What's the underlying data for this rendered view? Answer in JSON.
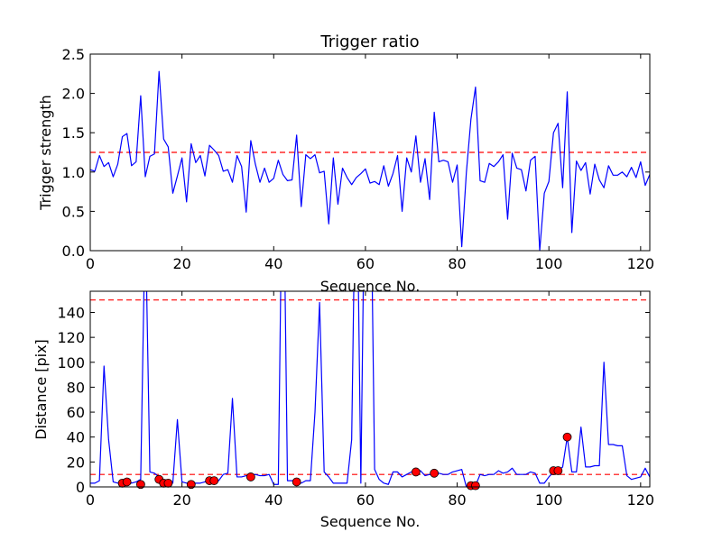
{
  "chart_data": [
    {
      "type": "line",
      "title": "Trigger ratio",
      "xlabel": "Sequence No.",
      "ylabel": "Trigger strength",
      "xlim": [
        0,
        122
      ],
      "ylim": [
        0,
        2.5
      ],
      "xticks": [
        0,
        20,
        40,
        60,
        80,
        100,
        120
      ],
      "yticks": [
        0.0,
        0.5,
        1.0,
        1.5,
        2.0,
        2.5
      ],
      "ytick_labels": [
        "0.0",
        "0.5",
        "1.0",
        "1.5",
        "2.0",
        "2.5"
      ],
      "grid": false,
      "colors": {
        "series": "#0000ff",
        "threshold": "#ff0000"
      },
      "threshold": 1.25,
      "series": [
        {
          "x": [
            0,
            1,
            2,
            3,
            4,
            5,
            6,
            7,
            8,
            9,
            10,
            11,
            12,
            13,
            14,
            15,
            16,
            17,
            18,
            19,
            20,
            21,
            22,
            23,
            24,
            25,
            26,
            27,
            28,
            29,
            30,
            31,
            32,
            33,
            34,
            35,
            36,
            37,
            38,
            39,
            40,
            41,
            42,
            43,
            44,
            45,
            46,
            47,
            48,
            49,
            50,
            51,
            52,
            53,
            54,
            55,
            56,
            57,
            58,
            59,
            60,
            61,
            62,
            63,
            64,
            65,
            66,
            67,
            68,
            69,
            70,
            71,
            72,
            73,
            74,
            75,
            76,
            77,
            78,
            79,
            80,
            81,
            82,
            83,
            84,
            85,
            86,
            87,
            88,
            89,
            90,
            91,
            92,
            93,
            94,
            95,
            96,
            97,
            98,
            99,
            100,
            101,
            102,
            103,
            104,
            105,
            106,
            107,
            108,
            109,
            110,
            111,
            112,
            113,
            114,
            115,
            116,
            117,
            118,
            119,
            120,
            121,
            122
          ],
          "values": [
            1.03,
            1.01,
            1.21,
            1.07,
            1.12,
            0.94,
            1.1,
            1.45,
            1.49,
            1.08,
            1.13,
            1.97,
            0.94,
            1.2,
            1.23,
            2.28,
            1.42,
            1.32,
            0.73,
            0.95,
            1.18,
            0.62,
            1.36,
            1.12,
            1.21,
            0.95,
            1.34,
            1.28,
            1.21,
            1.01,
            1.03,
            0.87,
            1.21,
            1.07,
            0.49,
            1.4,
            1.1,
            0.87,
            1.05,
            0.87,
            0.92,
            1.15,
            0.97,
            0.89,
            0.9,
            1.47,
            0.56,
            1.22,
            1.17,
            1.22,
            0.99,
            1.01,
            0.34,
            1.18,
            0.59,
            1.05,
            0.93,
            0.84,
            0.93,
            0.98,
            1.04,
            0.86,
            0.88,
            0.84,
            1.08,
            0.82,
            0.98,
            1.21,
            0.5,
            1.18,
            1.0,
            1.46,
            0.87,
            1.17,
            0.65,
            1.76,
            1.13,
            1.15,
            1.13,
            0.87,
            1.09,
            0.05,
            0.99,
            1.67,
            2.08,
            0.89,
            0.87,
            1.11,
            1.07,
            1.13,
            1.22,
            0.4,
            1.24,
            1.05,
            1.03,
            0.76,
            1.15,
            1.2,
            0.0,
            0.73,
            0.88,
            1.5,
            1.62,
            0.8,
            2.02,
            0.23,
            1.14,
            1.02,
            1.12,
            0.72,
            1.1,
            0.9,
            0.8,
            1.08,
            0.96,
            0.96,
            1.0,
            0.94,
            1.06,
            0.93,
            1.13,
            0.83,
            0.97
          ]
        }
      ]
    },
    {
      "type": "line",
      "title": "",
      "xlabel": "Sequence No.",
      "ylabel": "Distance [pix]",
      "xlim": [
        0,
        122
      ],
      "ylim": [
        0,
        157
      ],
      "xticks": [
        0,
        20,
        40,
        60,
        80,
        100,
        120
      ],
      "yticks": [
        0,
        20,
        40,
        60,
        80,
        100,
        120,
        140
      ],
      "ytick_labels": [
        "0",
        "20",
        "40",
        "60",
        "80",
        "100",
        "120",
        "140"
      ],
      "grid": false,
      "colors": {
        "series": "#0000ff",
        "threshold": "#ff0000",
        "markers": "#ff0000"
      },
      "thresholds": [
        150,
        10
      ],
      "series": [
        {
          "x": [
            0,
            1,
            2,
            3,
            4,
            5,
            6,
            7,
            8,
            9,
            10,
            11,
            12,
            13,
            14,
            15,
            16,
            17,
            18,
            19,
            20,
            21,
            22,
            23,
            24,
            25,
            26,
            27,
            28,
            29,
            30,
            31,
            32,
            33,
            34,
            35,
            36,
            37,
            38,
            39,
            40,
            41,
            42,
            43,
            44,
            45,
            46,
            47,
            48,
            49,
            50,
            51,
            52,
            53,
            54,
            55,
            56,
            57,
            58,
            59,
            60,
            61,
            62,
            63,
            64,
            65,
            66,
            67,
            68,
            69,
            70,
            71,
            72,
            73,
            74,
            75,
            76,
            77,
            78,
            79,
            80,
            81,
            82,
            83,
            84,
            85,
            86,
            87,
            88,
            89,
            90,
            91,
            92,
            93,
            94,
            95,
            96,
            97,
            98,
            99,
            100,
            101,
            102,
            103,
            104,
            105,
            106,
            107,
            108,
            109,
            110,
            111,
            112,
            113,
            114,
            115,
            116,
            117,
            118,
            119,
            120,
            121,
            122
          ],
          "values": [
            3,
            3,
            5,
            97,
            38,
            4,
            3,
            4,
            6,
            3,
            4,
            6,
            220,
            12,
            11,
            8,
            4,
            4,
            3,
            54,
            4,
            3,
            3,
            3,
            3,
            4,
            5,
            5,
            5,
            10,
            11,
            71,
            8,
            8,
            9,
            9,
            10,
            9,
            9,
            10,
            2,
            2,
            300,
            5,
            5,
            4,
            3,
            5,
            5,
            60,
            148,
            12,
            8,
            3,
            3,
            3,
            3,
            38,
            300,
            3,
            300,
            300,
            14,
            6,
            3,
            2,
            12,
            12,
            8,
            10,
            12,
            13,
            13,
            9,
            10,
            9,
            11,
            10,
            10,
            12,
            13,
            14,
            0,
            0,
            1,
            10,
            9,
            10,
            10,
            13,
            11,
            12,
            15,
            10,
            10,
            10,
            12,
            11,
            3,
            3,
            8,
            12,
            13,
            16,
            40,
            12,
            12,
            48,
            16,
            16,
            17,
            17,
            100,
            34,
            34,
            33,
            33,
            9,
            6,
            7,
            8,
            15,
            8
          ]
        }
      ],
      "markers": {
        "x": [
          7,
          8,
          11,
          15,
          16,
          17,
          22,
          26,
          27,
          35,
          45,
          71,
          75,
          83,
          84,
          101,
          102,
          104
        ],
        "y": [
          3,
          4,
          2,
          6,
          3,
          3,
          2,
          5,
          5,
          8,
          4,
          12,
          11,
          1,
          1,
          13,
          13,
          40
        ]
      }
    }
  ]
}
